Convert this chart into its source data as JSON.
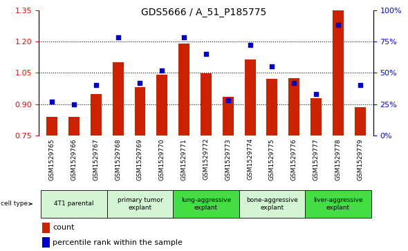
{
  "title": "GDS5666 / A_51_P185775",
  "samples": [
    "GSM1529765",
    "GSM1529766",
    "GSM1529767",
    "GSM1529768",
    "GSM1529769",
    "GSM1529770",
    "GSM1529771",
    "GSM1529772",
    "GSM1529773",
    "GSM1529774",
    "GSM1529775",
    "GSM1529776",
    "GSM1529777",
    "GSM1529778",
    "GSM1529779"
  ],
  "counts": [
    0.84,
    0.84,
    0.95,
    1.1,
    0.98,
    1.04,
    1.19,
    1.047,
    0.935,
    1.115,
    1.02,
    1.025,
    0.93,
    1.35,
    0.885
  ],
  "percentiles": [
    27,
    25,
    40,
    78,
    42,
    52,
    78,
    65,
    28,
    72,
    55,
    42,
    33,
    88,
    40
  ],
  "ylim_left": [
    0.75,
    1.35
  ],
  "ylim_right": [
    0,
    100
  ],
  "yticks_left": [
    0.75,
    0.9,
    1.05,
    1.2,
    1.35
  ],
  "yticks_right": [
    0,
    25,
    50,
    75,
    100
  ],
  "ytick_labels_right": [
    "0%",
    "25%",
    "50%",
    "75%",
    "100%"
  ],
  "bar_color": "#cc2200",
  "dot_color": "#0000cc",
  "cell_types": [
    {
      "label": "4T1 parental",
      "start": 0,
      "end": 2,
      "color": "#d4f5d4"
    },
    {
      "label": "primary tumor\nexplant",
      "start": 3,
      "end": 5,
      "color": "#d4f5d4"
    },
    {
      "label": "lung-aggressive\nexplant",
      "start": 6,
      "end": 8,
      "color": "#44dd44"
    },
    {
      "label": "bone-aggressive\nexplant",
      "start": 9,
      "end": 11,
      "color": "#d4f5d4"
    },
    {
      "label": "liver-aggressive\nexplant",
      "start": 12,
      "end": 14,
      "color": "#44dd44"
    }
  ],
  "bar_width": 0.5,
  "bg_color": "#ffffff",
  "xtick_bg_color": "#c0c0c0",
  "title_fontsize": 10,
  "tick_fontsize": 6.5,
  "label_fontsize": 8,
  "legend_fontsize": 8
}
